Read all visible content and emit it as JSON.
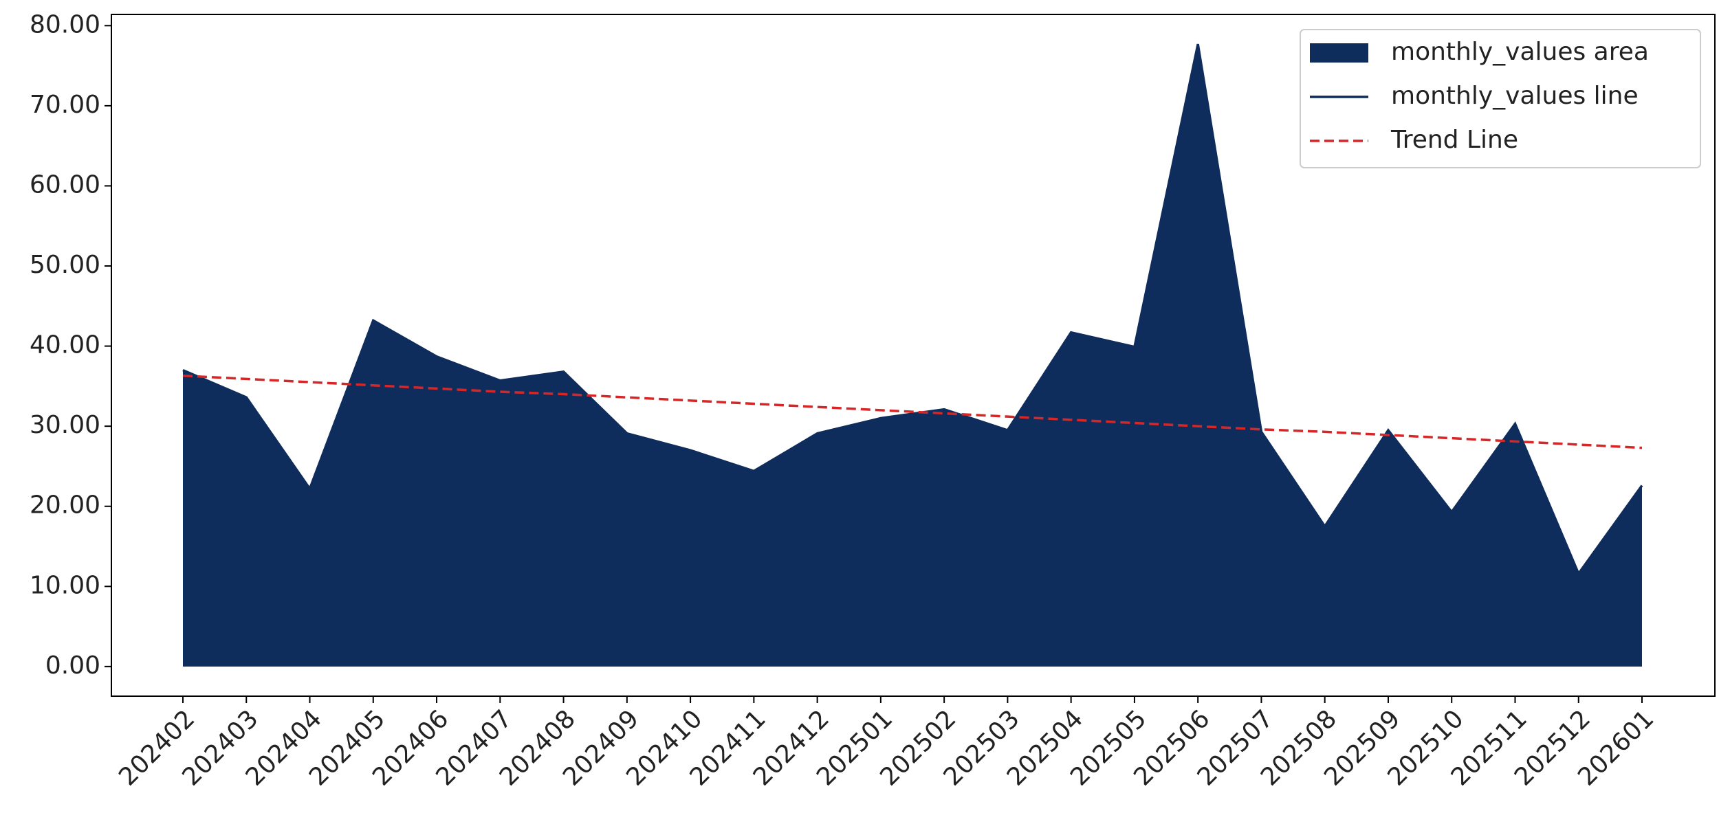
{
  "chart_data": {
    "type": "area",
    "categories": [
      "202402",
      "202403",
      "202404",
      "202405",
      "202406",
      "202407",
      "202408",
      "202409",
      "202410",
      "202411",
      "202412",
      "202501",
      "202502",
      "202503",
      "202504",
      "202505",
      "202506",
      "202507",
      "202508",
      "202509",
      "202510",
      "202511",
      "202512",
      "202601"
    ],
    "series": [
      {
        "name": "monthly_values area",
        "kind": "area",
        "color": "#0f2d5c",
        "values": [
          37.0,
          33.6,
          22.2,
          43.2,
          38.7,
          35.7,
          36.8,
          29.1,
          27.0,
          24.4,
          29.1,
          31.0,
          32.1,
          29.5,
          41.7,
          39.9,
          77.7,
          29.3,
          17.5,
          29.5,
          19.3,
          30.3,
          11.6,
          22.6
        ]
      },
      {
        "name": "monthly_values line",
        "kind": "line",
        "color": "#0f2d5c",
        "values": [
          37.0,
          33.6,
          22.2,
          43.2,
          38.7,
          35.7,
          36.8,
          29.1,
          27.0,
          24.4,
          29.1,
          31.0,
          32.1,
          29.5,
          41.7,
          39.9,
          77.7,
          29.3,
          17.5,
          29.5,
          19.3,
          30.3,
          11.6,
          22.6
        ]
      },
      {
        "name": "Trend Line",
        "kind": "line",
        "dashed": true,
        "color": "#d62728",
        "values": [
          36.3,
          35.9,
          35.5,
          35.1,
          34.7,
          34.3,
          34.0,
          33.6,
          33.2,
          32.8,
          32.4,
          32.0,
          31.6,
          31.2,
          30.8,
          30.4,
          30.0,
          29.6,
          29.3,
          28.9,
          28.5,
          28.1,
          27.7,
          27.3
        ]
      }
    ],
    "ylim": [
      -3.7,
      81.4
    ],
    "yticks": [
      {
        "value": 0,
        "label": "0.00"
      },
      {
        "value": 10,
        "label": "10.00"
      },
      {
        "value": 20,
        "label": "20.00"
      },
      {
        "value": 30,
        "label": "30.00"
      },
      {
        "value": 40,
        "label": "40.00"
      },
      {
        "value": 50,
        "label": "50.00"
      },
      {
        "value": 60,
        "label": "60.00"
      },
      {
        "value": 70,
        "label": "70.00"
      },
      {
        "value": 80,
        "label": "80.00"
      }
    ],
    "legend": "upper right"
  }
}
